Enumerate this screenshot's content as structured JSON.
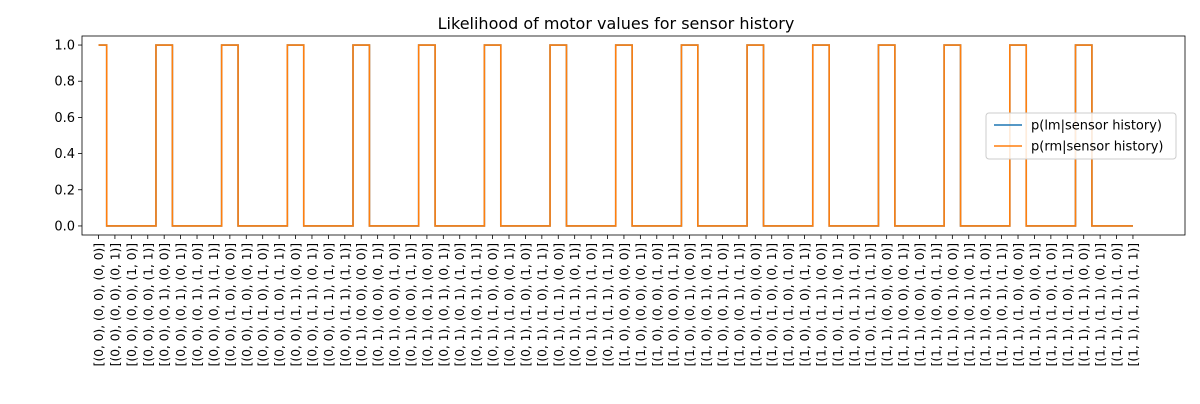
{
  "chart_data": {
    "type": "line",
    "title": "Likelihood of motor values for sensor history",
    "xlabel": "",
    "ylabel": "",
    "ylim": [
      -0.05,
      1.05
    ],
    "y_ticks": [
      "0.0",
      "0.2",
      "0.4",
      "0.6",
      "0.8",
      "1.0"
    ],
    "x_tick_labels": [
      "[(0, 0), (0, 0), (0, 0)]",
      "[(0, 0), (0, 0), (0, 1)]",
      "[(0, 0), (0, 0), (1, 0)]",
      "[(0, 0), (0, 0), (1, 1)]",
      "[(0, 0), (0, 1), (0, 0)]",
      "[(0, 0), (0, 1), (0, 1)]",
      "[(0, 0), (0, 1), (1, 0)]",
      "[(0, 0), (0, 1), (1, 1)]",
      "[(0, 0), (1, 0), (0, 0)]",
      "[(0, 0), (1, 0), (0, 1)]",
      "[(0, 0), (1, 0), (1, 0)]",
      "[(0, 0), (1, 0), (1, 1)]",
      "[(0, 0), (1, 1), (0, 0)]",
      "[(0, 0), (1, 1), (0, 1)]",
      "[(0, 0), (1, 1), (1, 0)]",
      "[(0, 0), (1, 1), (1, 1)]",
      "[(0, 1), (0, 0), (0, 0)]",
      "[(0, 1), (0, 0), (0, 1)]",
      "[(0, 1), (0, 0), (1, 0)]",
      "[(0, 1), (0, 0), (1, 1)]",
      "[(0, 1), (0, 1), (0, 0)]",
      "[(0, 1), (0, 1), (0, 1)]",
      "[(0, 1), (0, 1), (1, 0)]",
      "[(0, 1), (0, 1), (1, 1)]",
      "[(0, 1), (1, 0), (0, 0)]",
      "[(0, 1), (1, 0), (0, 1)]",
      "[(0, 1), (1, 0), (1, 0)]",
      "[(0, 1), (1, 0), (1, 1)]",
      "[(0, 1), (1, 1), (0, 0)]",
      "[(0, 1), (1, 1), (0, 1)]",
      "[(0, 1), (1, 1), (1, 0)]",
      "[(0, 1), (1, 1), (1, 1)]",
      "[(1, 0), (0, 0), (0, 0)]",
      "[(1, 0), (0, 0), (0, 1)]",
      "[(1, 0), (0, 0), (1, 0)]",
      "[(1, 0), (0, 0), (1, 1)]",
      "[(1, 0), (0, 1), (0, 0)]",
      "[(1, 0), (0, 1), (0, 1)]",
      "[(1, 0), (0, 1), (1, 0)]",
      "[(1, 0), (0, 1), (1, 1)]",
      "[(1, 0), (1, 0), (0, 0)]",
      "[(1, 0), (1, 0), (0, 1)]",
      "[(1, 0), (1, 0), (1, 0)]",
      "[(1, 0), (1, 0), (1, 1)]",
      "[(1, 0), (1, 1), (0, 0)]",
      "[(1, 0), (1, 1), (0, 1)]",
      "[(1, 0), (1, 1), (1, 0)]",
      "[(1, 0), (1, 1), (1, 1)]",
      "[(1, 1), (0, 0), (0, 0)]",
      "[(1, 1), (0, 0), (0, 1)]",
      "[(1, 1), (0, 0), (1, 0)]",
      "[(1, 1), (0, 0), (1, 1)]",
      "[(1, 1), (0, 1), (0, 0)]",
      "[(1, 1), (0, 1), (0, 1)]",
      "[(1, 1), (0, 1), (1, 0)]",
      "[(1, 1), (0, 1), (1, 1)]",
      "[(1, 1), (1, 0), (0, 0)]",
      "[(1, 1), (1, 0), (0, 1)]",
      "[(1, 1), (1, 0), (1, 0)]",
      "[(1, 1), (1, 0), (1, 1)]",
      "[(1, 1), (1, 1), (0, 0)]",
      "[(1, 1), (1, 1), (0, 1)]",
      "[(1, 1), (1, 1), (1, 0)]",
      "[(1, 1), (1, 1), (1, 1)]"
    ],
    "series": [
      {
        "name": "p(lm|sensor history)",
        "color": "#1f77b4",
        "values": [
          1,
          0,
          0,
          0,
          1,
          0,
          0,
          0,
          1,
          0,
          0,
          0,
          1,
          0,
          0,
          0,
          1,
          0,
          0,
          0,
          1,
          0,
          0,
          0,
          1,
          0,
          0,
          0,
          1,
          0,
          0,
          0,
          1,
          0,
          0,
          0,
          1,
          0,
          0,
          0,
          1,
          0,
          0,
          0,
          1,
          0,
          0,
          0,
          1,
          0,
          0,
          0,
          1,
          0,
          0,
          0,
          1,
          0,
          0,
          0,
          1,
          0,
          0,
          0
        ]
      },
      {
        "name": "p(rm|sensor history)",
        "color": "#ff7f0e",
        "values": [
          1,
          0,
          0,
          0,
          1,
          0,
          0,
          0,
          1,
          0,
          0,
          0,
          1,
          0,
          0,
          0,
          1,
          0,
          0,
          0,
          1,
          0,
          0,
          0,
          1,
          0,
          0,
          0,
          1,
          0,
          0,
          0,
          1,
          0,
          0,
          0,
          1,
          0,
          0,
          0,
          1,
          0,
          0,
          0,
          1,
          0,
          0,
          0,
          1,
          0,
          0,
          0,
          1,
          0,
          0,
          0,
          1,
          0,
          0,
          0,
          1,
          0,
          0,
          0
        ]
      }
    ],
    "legend_position": "center-right",
    "grid": false
  }
}
